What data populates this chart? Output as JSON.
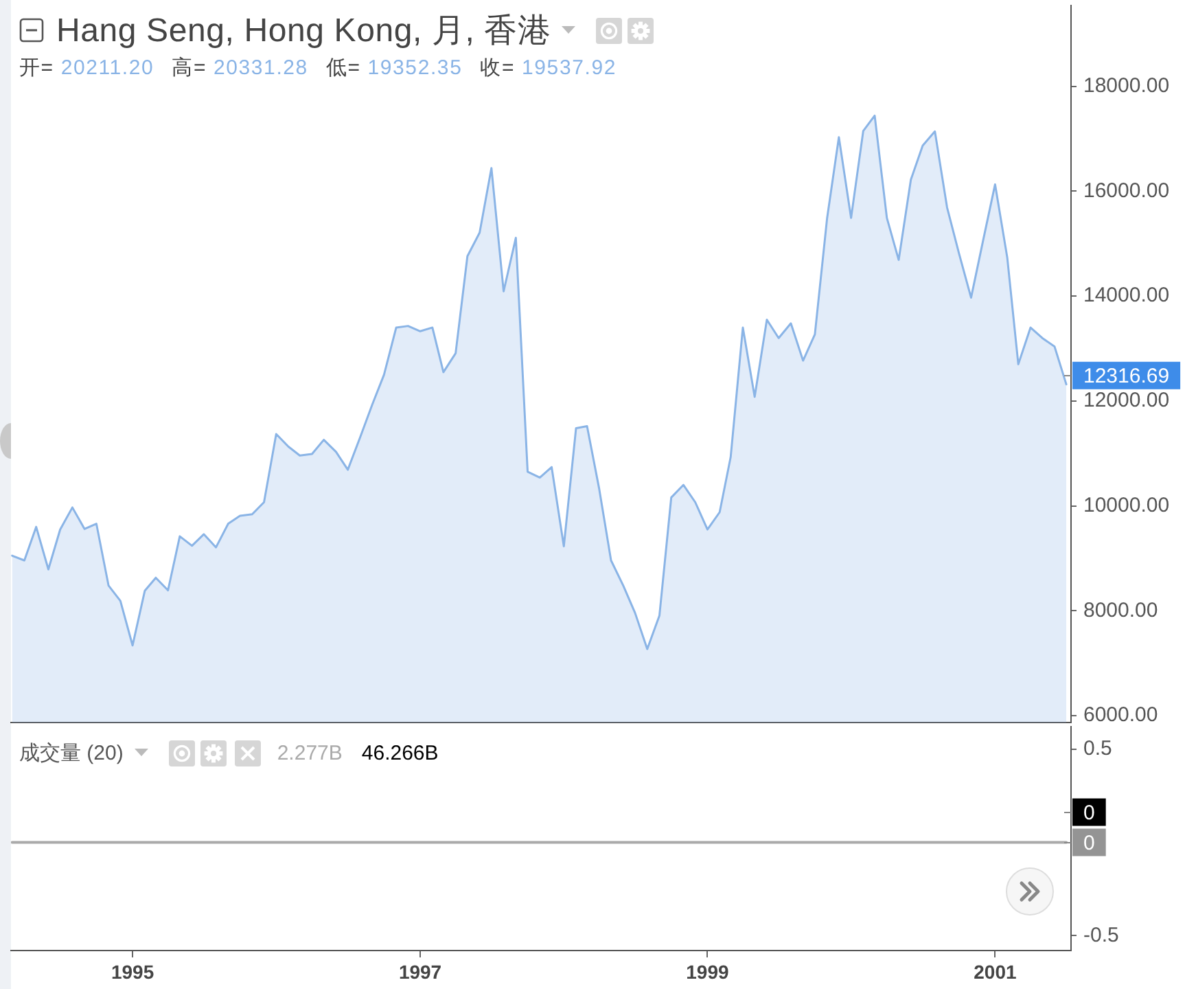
{
  "chart_data": [
    {
      "type": "area",
      "title": "Hang Seng, Hong Kong, 月, 香港",
      "subtitle": "开= 20211.20 高= 20331.28 低= 19352.35 收= 19537.92",
      "x": [
        "1994-03",
        "1994-04",
        "1994-05",
        "1994-06",
        "1994-07",
        "1994-08",
        "1994-09",
        "1994-10",
        "1994-11",
        "1994-12",
        "1995-01",
        "1995-02",
        "1995-03",
        "1995-04",
        "1995-05",
        "1995-06",
        "1995-07",
        "1995-08",
        "1995-09",
        "1995-10",
        "1995-11",
        "1995-12",
        "1996-01",
        "1996-02",
        "1996-03",
        "1996-04",
        "1996-05",
        "1996-06",
        "1996-07",
        "1996-08",
        "1996-09",
        "1996-10",
        "1996-11",
        "1996-12",
        "1997-01",
        "1997-02",
        "1997-03",
        "1997-04",
        "1997-05",
        "1997-06",
        "1997-07",
        "1997-08",
        "1997-09",
        "1997-10",
        "1997-11",
        "1997-12",
        "1998-01",
        "1998-02",
        "1998-03",
        "1998-04",
        "1998-05",
        "1998-06",
        "1998-07",
        "1998-08",
        "1998-09",
        "1998-10",
        "1998-11",
        "1998-12",
        "1999-01",
        "1999-02",
        "1999-03",
        "1999-04",
        "1999-05",
        "1999-06",
        "1999-07",
        "1999-08",
        "1999-09",
        "1999-10",
        "1999-11",
        "1999-12",
        "2000-01",
        "2000-02",
        "2000-03",
        "2000-04",
        "2000-05",
        "2000-06",
        "2000-07",
        "2000-08",
        "2000-09",
        "2000-10",
        "2000-11",
        "2000-12",
        "2001-01",
        "2001-02",
        "2001-03",
        "2001-04",
        "2001-05",
        "2001-06",
        "2001-07"
      ],
      "series": [
        {
          "color": "#8ab4e6",
          "values": [
            9050,
            8960,
            9600,
            8790,
            9550,
            9970,
            9560,
            9660,
            8480,
            8190,
            7340,
            8380,
            8630,
            8390,
            9420,
            9240,
            9460,
            9210,
            9660,
            9810,
            9840,
            10070,
            11370,
            11130,
            10960,
            10990,
            11260,
            11030,
            10690,
            11300,
            11930,
            12500,
            13400,
            13430,
            13330,
            13400,
            12550,
            12910,
            14760,
            15210,
            16440,
            14090,
            15110,
            10650,
            10540,
            10740,
            9230,
            11480,
            11520,
            10320,
            8960,
            8480,
            7960,
            7270,
            7910,
            10160,
            10400,
            10070,
            9550,
            9880,
            10930,
            13400,
            12080,
            13550,
            13200,
            13480,
            12770,
            13270,
            15480,
            17030,
            15490,
            17150,
            17440,
            15490,
            14690,
            16220,
            16870,
            17140,
            15690,
            14820,
            13970,
            15040,
            16130,
            14730,
            12700,
            13400,
            13200,
            13040,
            12316.69
          ],
          "value_labels": [
            null,
            null,
            null,
            null,
            null,
            null,
            null,
            null,
            null,
            null,
            null,
            null,
            null,
            null,
            null,
            null,
            null,
            null,
            null,
            null,
            null,
            null,
            null,
            null,
            null,
            null,
            null,
            null,
            null,
            null,
            null,
            null,
            null,
            null,
            null,
            null,
            null,
            null,
            null,
            null,
            null,
            null,
            null,
            null,
            null,
            null,
            null,
            null,
            null,
            null,
            null,
            null,
            null,
            null,
            null,
            null,
            null,
            null,
            null,
            null,
            null,
            null,
            null,
            null,
            null,
            null,
            null,
            null,
            null,
            null,
            null,
            null,
            null,
            null,
            null,
            null,
            null,
            null,
            null,
            null,
            null,
            null,
            null,
            null,
            null,
            null,
            null,
            null,
            "12316.69"
          ]
        }
      ],
      "xlim": [
        "1994-02-26",
        "2001-07-13"
      ],
      "ylim": [
        5870,
        19540
      ],
      "yticks": [
        {
          "value": 6000,
          "label": "6000.00"
        },
        {
          "value": 8000,
          "label": "8000.00"
        },
        {
          "value": 10000,
          "label": "10000.00"
        },
        {
          "value": 12000,
          "label": "12000.00"
        },
        {
          "value": 14000,
          "label": "14000.00"
        },
        {
          "value": 16000,
          "label": "16000.00"
        },
        {
          "value": 18000,
          "label": "18000.00"
        }
      ],
      "tick_labels": "y"
    },
    {
      "type": "line",
      "title": "成交量 (20)",
      "annotations": [
        "2.277B",
        "46.266B",
        {
          "text": "0",
          "x": "2001-07",
          "y": 0
        }
      ],
      "x": [
        "1994-03",
        "1994-04",
        "1994-05",
        "1994-06",
        "1994-07",
        "1994-08",
        "1994-09",
        "1994-10",
        "1994-11",
        "1994-12",
        "1995-01",
        "1995-02",
        "1995-03",
        "1995-04",
        "1995-05",
        "1995-06",
        "1995-07",
        "1995-08",
        "1995-09",
        "1995-10",
        "1995-11",
        "1995-12",
        "1996-01",
        "1996-02",
        "1996-03",
        "1996-04",
        "1996-05",
        "1996-06",
        "1996-07",
        "1996-08",
        "1996-09",
        "1996-10",
        "1996-11",
        "1996-12",
        "1997-01",
        "1997-02",
        "1997-03",
        "1997-04",
        "1997-05",
        "1997-06",
        "1997-07",
        "1997-08",
        "1997-09",
        "1997-10",
        "1997-11",
        "1997-12",
        "1998-01",
        "1998-02",
        "1998-03",
        "1998-04",
        "1998-05",
        "1998-06",
        "1998-07",
        "1998-08",
        "1998-09",
        "1998-10",
        "1998-11",
        "1998-12",
        "1999-01",
        "1999-02",
        "1999-03",
        "1999-04",
        "1999-05",
        "1999-06",
        "1999-07",
        "1999-08",
        "1999-09",
        "1999-10",
        "1999-11",
        "1999-12",
        "2000-01",
        "2000-02",
        "2000-03",
        "2000-04",
        "2000-05",
        "2000-06",
        "2000-07",
        "2000-08",
        "2000-09",
        "2000-10",
        "2000-11",
        "2000-12",
        "2001-01",
        "2001-02",
        "2001-03",
        "2001-04",
        "2001-05",
        "2001-06",
        "2001-07"
      ],
      "series": [
        {
          "color": "#aaaaaa",
          "values": [
            0,
            0,
            0,
            0,
            0,
            0,
            0,
            0,
            0,
            0,
            0,
            0,
            0,
            0,
            0,
            0,
            0,
            0,
            0,
            0,
            0,
            0,
            0,
            0,
            0,
            0,
            0,
            0,
            0,
            0,
            0,
            0,
            0,
            0,
            0,
            0,
            0,
            0,
            0,
            0,
            0,
            0,
            0,
            0,
            0,
            0,
            0,
            0,
            0,
            0,
            0,
            0,
            0,
            0,
            0,
            0,
            0,
            0,
            0,
            0,
            0,
            0,
            0,
            0,
            0,
            0,
            0,
            0,
            0,
            0,
            0,
            0,
            0,
            0,
            0,
            0,
            0,
            0,
            0,
            0,
            0,
            0,
            0,
            0,
            0,
            0,
            0,
            0,
            0
          ],
          "value_labels": [
            null,
            null,
            null,
            null,
            null,
            null,
            null,
            null,
            null,
            null,
            null,
            null,
            null,
            null,
            null,
            null,
            null,
            null,
            null,
            null,
            null,
            null,
            null,
            null,
            null,
            null,
            null,
            null,
            null,
            null,
            null,
            null,
            null,
            null,
            null,
            null,
            null,
            null,
            null,
            null,
            null,
            null,
            null,
            null,
            null,
            null,
            null,
            null,
            null,
            null,
            null,
            null,
            null,
            null,
            null,
            null,
            null,
            null,
            null,
            null,
            null,
            null,
            null,
            null,
            null,
            null,
            null,
            null,
            null,
            null,
            null,
            null,
            null,
            null,
            null,
            null,
            null,
            null,
            null,
            null,
            null,
            null,
            null,
            null,
            null,
            null,
            null,
            null,
            "0"
          ]
        }
      ],
      "xlim": [
        "1994-02-26",
        "2001-07-13"
      ],
      "xticks": [
        "1995",
        "1997",
        "1999",
        "2001"
      ],
      "ylim": [
        -0.58,
        0.62
      ],
      "yticks": [
        0.5,
        -0.5
      ]
    }
  ]
}
